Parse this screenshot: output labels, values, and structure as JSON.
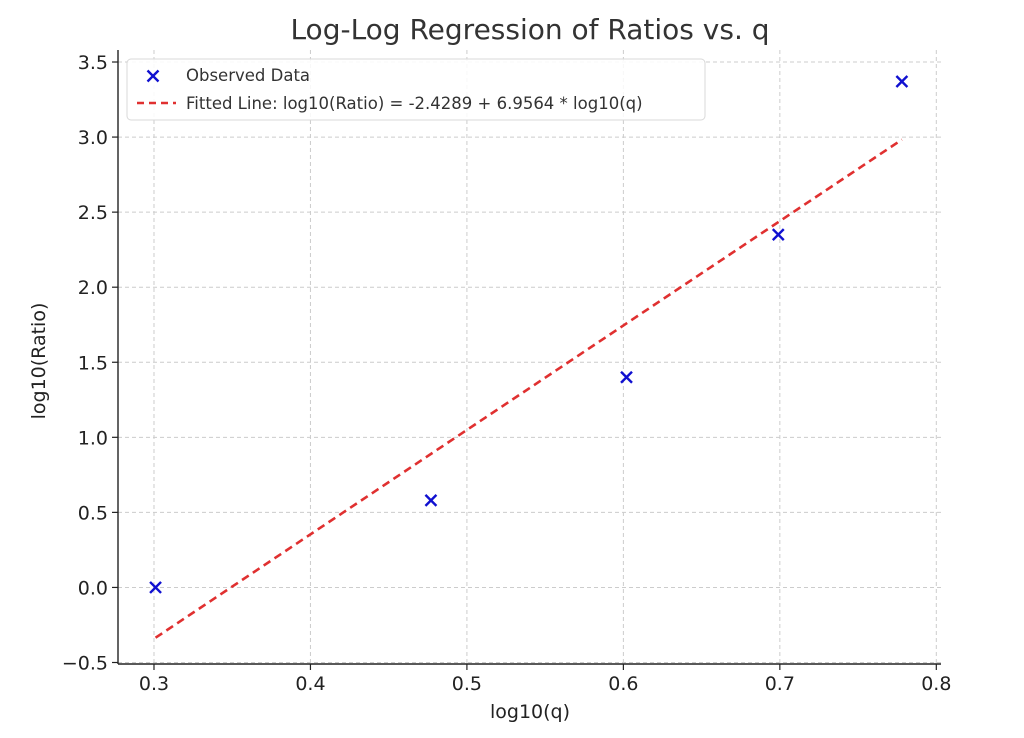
{
  "chart_data": {
    "type": "scatter",
    "title": "Log-Log Regression of Ratios vs. q",
    "xlabel": "log10(q)",
    "ylabel": "log10(Ratio)",
    "xlim": [
      0.277,
      0.803
    ],
    "ylim": [
      -0.51,
      3.58
    ],
    "x_ticks": [
      0.3,
      0.4,
      0.5,
      0.6,
      0.7,
      0.8
    ],
    "x_tick_labels": [
      "0.3",
      "0.4",
      "0.5",
      "0.6",
      "0.7",
      "0.8"
    ],
    "y_ticks": [
      -0.5,
      0.0,
      0.5,
      1.0,
      1.5,
      2.0,
      2.5,
      3.0,
      3.5
    ],
    "y_tick_labels": [
      "−0.5",
      "0.0",
      "0.5",
      "1.0",
      "1.5",
      "2.0",
      "2.5",
      "3.0",
      "3.5"
    ],
    "grid": true,
    "legend_position": "top-left",
    "series": [
      {
        "name": "Observed Data",
        "kind": "scatter",
        "marker": "x",
        "color": "#1010d0",
        "x": [
          0.301,
          0.477,
          0.602,
          0.699,
          0.778
        ],
        "y": [
          0.0,
          0.58,
          1.4,
          2.35,
          3.37
        ]
      },
      {
        "name": "Fitted Line: log10(Ratio) = -2.4289 + 6.9564 * log10(q)",
        "kind": "line",
        "style": "dashed",
        "color": "#e03030",
        "intercept": -2.4289,
        "slope": 6.9564,
        "x": [
          0.301,
          0.778
        ],
        "y": [
          -0.335,
          2.983
        ]
      }
    ]
  }
}
